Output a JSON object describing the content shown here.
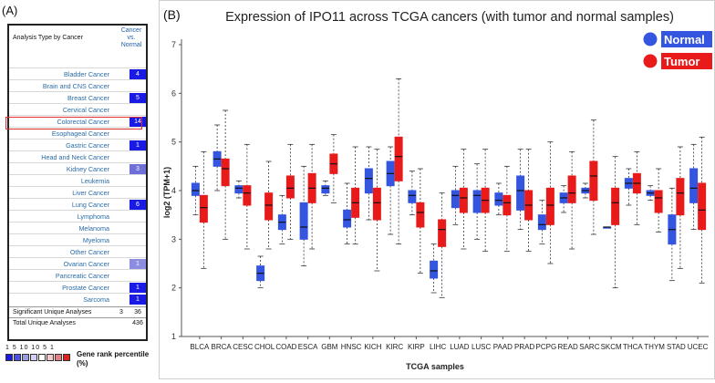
{
  "panel_a": {
    "label": "(A)",
    "header_type": "Analysis Type by Cancer",
    "header_cvn": [
      "Cancer",
      "vs.",
      "Normal"
    ],
    "rows": [
      {
        "name": "Bladder Cancer",
        "value": "4",
        "color": "#1a1ae6"
      },
      {
        "name": "Brain and CNS Cancer",
        "value": "",
        "color": ""
      },
      {
        "name": "Breast Cancer",
        "value": "5",
        "color": "#1a1ae6"
      },
      {
        "name": "Cervical Cancer",
        "value": "",
        "color": ""
      },
      {
        "name": "Colorectal Cancer",
        "value": "14",
        "color": "#1a1ae6"
      },
      {
        "name": "Esophageal Cancer",
        "value": "",
        "color": ""
      },
      {
        "name": "Gastric Cancer",
        "value": "1",
        "color": "#1a1ae6"
      },
      {
        "name": "Head and Neck Cancer",
        "value": "",
        "color": ""
      },
      {
        "name": "Kidney Cancer",
        "value": "3",
        "color": "#6f6fd9"
      },
      {
        "name": "Leukemia",
        "value": "",
        "color": ""
      },
      {
        "name": "Liver Cancer",
        "value": "",
        "color": ""
      },
      {
        "name": "Lung Cancer",
        "value": "6",
        "color": "#1a1ae6"
      },
      {
        "name": "Lymphoma",
        "value": "",
        "color": ""
      },
      {
        "name": "Melanoma",
        "value": "",
        "color": ""
      },
      {
        "name": "Myeloma",
        "value": "",
        "color": ""
      },
      {
        "name": "Other Cancer",
        "value": "",
        "color": ""
      },
      {
        "name": "Ovarian Cancer",
        "value": "1",
        "color": "#8c8ce0"
      },
      {
        "name": "Pancreatic Cancer",
        "value": "",
        "color": ""
      },
      {
        "name": "Prostate Cancer",
        "value": "1",
        "color": "#1a1ae6"
      },
      {
        "name": "Sarcoma",
        "value": "1",
        "color": "#1a1ae6"
      }
    ],
    "summary": [
      {
        "label": "Significant Unique Analyses",
        "a": "3",
        "b": "36"
      },
      {
        "label": "Total Unique Analyses",
        "a": "",
        "b": "436"
      }
    ],
    "legend": {
      "numbers": "1 5 10    10 5 1",
      "title": "Gene rank percentile (%)",
      "colors": [
        "#1a1ae6",
        "#5050e0",
        "#9a9ae6",
        "#d0d0f0",
        "#ffffff",
        "#f2c8c8",
        "#e88080",
        "#dd2020"
      ]
    }
  },
  "panel_b": {
    "label": "(B)"
  },
  "chart_data": {
    "type": "boxplot",
    "title": "Expression of IPO11 across TCGA cancers (with tumor and normal samples)",
    "xlabel": "TCGA samples",
    "ylabel": "log2 (TPM+1)",
    "ylim": [
      1,
      7
    ],
    "yticks": [
      1,
      2,
      3,
      4,
      5,
      6,
      7
    ],
    "grid": false,
    "legend_position": "top-right",
    "series_colors": {
      "Normal": "#3355e0",
      "Tumor": "#e81a1a"
    },
    "legend": [
      {
        "name": "Normal",
        "color": "#3355e0"
      },
      {
        "name": "Tumor",
        "color": "#e81a1a"
      }
    ],
    "categories": [
      "BLCA",
      "BRCA",
      "CESC",
      "CHOL",
      "COAD",
      "ESCA",
      "GBM",
      "HNSC",
      "KICH",
      "KIRC",
      "KIRP",
      "LIHC",
      "LUAD",
      "LUSC",
      "PAAD",
      "PRAD",
      "PCPG",
      "READ",
      "SARC",
      "SKCM",
      "THCA",
      "THYM",
      "STAD",
      "UCEC"
    ],
    "normal": [
      [
        3.5,
        3.9,
        4.0,
        4.15,
        4.5
      ],
      [
        4.0,
        4.5,
        4.65,
        4.8,
        5.35
      ],
      [
        3.85,
        3.95,
        4.05,
        4.1,
        4.2
      ],
      [
        2.0,
        2.15,
        2.3,
        2.45,
        2.65
      ],
      [
        2.9,
        3.2,
        3.35,
        3.5,
        3.9
      ],
      [
        2.45,
        3.0,
        3.25,
        3.75,
        4.5
      ],
      [
        3.9,
        3.95,
        4.05,
        4.1,
        4.2
      ],
      [
        2.9,
        3.25,
        3.4,
        3.6,
        4.15
      ],
      [
        3.4,
        3.95,
        4.25,
        4.45,
        4.9
      ],
      [
        3.1,
        4.1,
        4.35,
        4.6,
        4.9
      ],
      [
        3.5,
        3.75,
        3.9,
        4.0,
        4.4
      ],
      [
        1.9,
        2.2,
        2.35,
        2.55,
        2.9
      ],
      [
        3.3,
        3.65,
        3.9,
        4.0,
        4.5
      ],
      [
        3.0,
        3.55,
        3.9,
        4.0,
        4.55
      ],
      [
        3.5,
        3.7,
        3.8,
        3.95,
        4.15
      ],
      [
        3.2,
        3.6,
        4.0,
        4.3,
        4.85
      ],
      [
        2.9,
        3.2,
        3.3,
        3.5,
        3.8
      ],
      [
        3.55,
        3.75,
        3.85,
        3.95,
        4.1
      ],
      [
        3.85,
        3.95,
        4.0,
        4.05,
        4.15
      ],
      [
        3.25,
        3.25,
        3.25,
        3.25,
        3.25
      ],
      [
        3.7,
        4.05,
        4.15,
        4.25,
        4.45
      ],
      [
        3.8,
        3.9,
        3.95,
        4.0,
        4.1
      ],
      [
        2.15,
        2.9,
        3.2,
        3.5,
        4.05
      ],
      [
        3.2,
        3.75,
        4.05,
        4.45,
        4.95
      ]
    ],
    "tumor": [
      [
        2.4,
        3.35,
        3.65,
        3.9,
        4.8
      ],
      [
        3.0,
        4.1,
        4.45,
        4.65,
        5.65
      ],
      [
        2.8,
        3.7,
        3.95,
        4.1,
        4.95
      ],
      [
        2.8,
        3.4,
        3.7,
        3.95,
        4.6
      ],
      [
        3.0,
        3.85,
        4.05,
        4.3,
        4.95
      ],
      [
        2.8,
        3.75,
        4.05,
        4.35,
        4.95
      ],
      [
        3.75,
        4.35,
        4.55,
        4.75,
        5.15
      ],
      [
        2.9,
        3.45,
        3.75,
        4.05,
        4.9
      ],
      [
        2.35,
        3.4,
        3.75,
        4.05,
        4.85
      ],
      [
        2.9,
        4.2,
        4.7,
        5.1,
        6.3
      ],
      [
        2.3,
        3.25,
        3.55,
        3.75,
        4.45
      ],
      [
        1.8,
        2.85,
        3.2,
        3.4,
        3.95
      ],
      [
        2.8,
        3.55,
        3.85,
        4.05,
        4.85
      ],
      [
        2.75,
        3.55,
        3.8,
        4.05,
        4.85
      ],
      [
        2.75,
        3.5,
        3.75,
        3.9,
        4.5
      ],
      [
        2.75,
        3.4,
        3.7,
        4.0,
        4.85
      ],
      [
        2.5,
        3.3,
        3.7,
        4.05,
        5.0
      ],
      [
        2.8,
        3.75,
        3.95,
        4.3,
        4.8
      ],
      [
        3.1,
        3.8,
        4.3,
        4.6,
        5.45
      ],
      [
        2.0,
        3.3,
        3.75,
        4.05,
        4.7
      ],
      [
        3.3,
        3.95,
        4.15,
        4.35,
        4.8
      ],
      [
        3.15,
        3.55,
        3.85,
        4.0,
        4.45
      ],
      [
        2.4,
        3.5,
        3.95,
        4.25,
        4.9
      ],
      [
        2.1,
        3.2,
        3.6,
        4.15,
        5.1
      ]
    ]
  }
}
